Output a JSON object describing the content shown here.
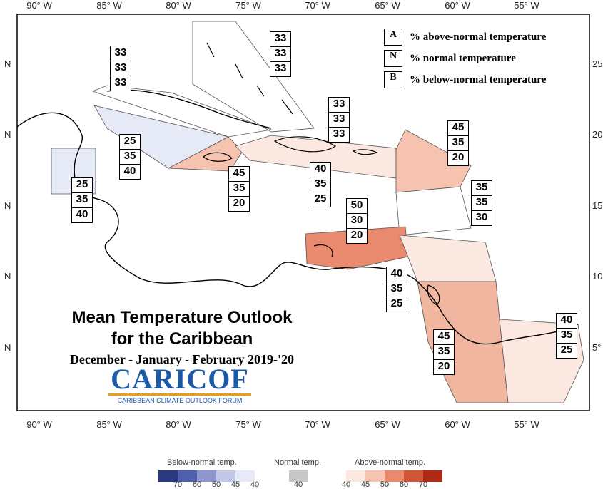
{
  "lon_ticks_top": [
    "90° W",
    "85° W",
    "80° W",
    "75° W",
    "70° W",
    "65° W",
    "60° W",
    "55° W"
  ],
  "lon_ticks_bottom": [
    "90° W",
    "85° W",
    "80° W",
    "75° W",
    "70° W",
    "65° W",
    "60° W",
    "55° W"
  ],
  "lat_ticks_left": [
    "N",
    "N",
    "N",
    "N",
    "N"
  ],
  "lat_ticks_right": [
    "25",
    "20",
    "15",
    "10",
    "5°"
  ],
  "legend": {
    "a_key": "A",
    "a_text": "% above-normal temperature",
    "n_key": "N",
    "n_text": "% normal temperature",
    "b_key": "B",
    "b_text": "% below-normal temperature"
  },
  "title": {
    "line1": "Mean Temperature Outlook",
    "line2": "for the Caribbean",
    "line3": "December - January - February 2019-'20"
  },
  "logo": {
    "brand": "CARICOF",
    "tagline": "CARIBBEAN CLIMATE OUTLOOK FORUM"
  },
  "boxes": [
    {
      "id": "northwest-caribbean",
      "values": [
        "33",
        "33",
        "33"
      ]
    },
    {
      "id": "bahamas",
      "values": [
        "33",
        "33",
        "33"
      ]
    },
    {
      "id": "cuba",
      "values": [
        "25",
        "35",
        "40"
      ]
    },
    {
      "id": "belize",
      "values": [
        "25",
        "35",
        "40"
      ]
    },
    {
      "id": "jamaica",
      "values": [
        "45",
        "35",
        "20"
      ]
    },
    {
      "id": "hispaniola",
      "values": [
        "40",
        "35",
        "25"
      ]
    },
    {
      "id": "turks-caicos",
      "values": [
        "33",
        "33",
        "33"
      ]
    },
    {
      "id": "northern-leewards",
      "values": [
        "45",
        "35",
        "20"
      ]
    },
    {
      "id": "southern-windwards",
      "values": [
        "35",
        "35",
        "30"
      ]
    },
    {
      "id": "abc-islands",
      "values": [
        "50",
        "30",
        "20"
      ]
    },
    {
      "id": "trinidad-tobago",
      "values": [
        "40",
        "35",
        "25"
      ]
    },
    {
      "id": "guyana",
      "values": [
        "45",
        "35",
        "20"
      ]
    },
    {
      "id": "french-guiana",
      "values": [
        "40",
        "35",
        "25"
      ]
    }
  ],
  "colorbar": {
    "below_label": "Below-normal temp.",
    "normal_label": "Normal temp.",
    "above_label": "Above-normal temp.",
    "below_ticks": [
      "70",
      "60",
      "50",
      "45",
      "40"
    ],
    "normal_ticks": [
      "40"
    ],
    "above_ticks": [
      "40",
      "45",
      "50",
      "60",
      "70"
    ],
    "below_colors": [
      "#2b3a80",
      "#5060b0",
      "#8e95cf",
      "#c3c8e8",
      "#e6e9f6"
    ],
    "normal_color": "#c8c8c8",
    "above_colors": [
      "#fbe8e0",
      "#f6c3b0",
      "#e98a6f",
      "#d35538",
      "#b02a16"
    ]
  }
}
